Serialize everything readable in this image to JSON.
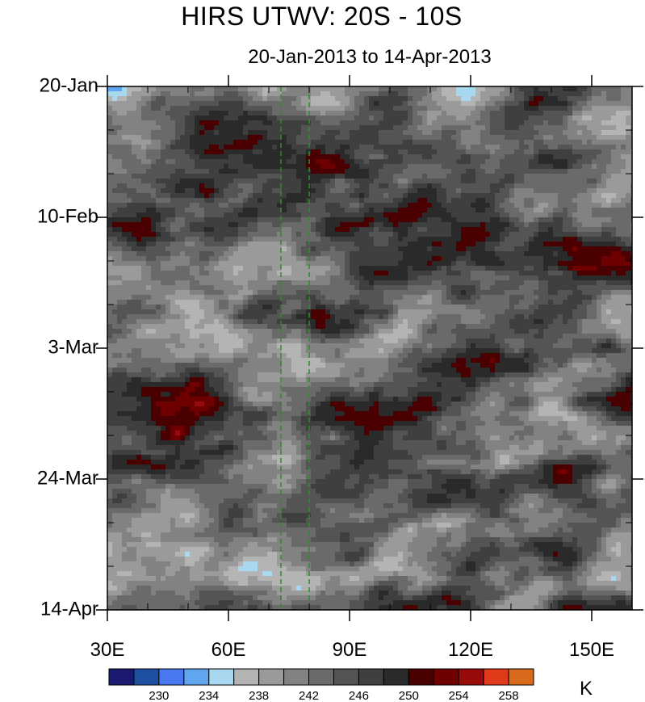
{
  "chart_data": {
    "type": "heatmap",
    "title": "HIRS UTWV: 20S - 10S",
    "subtitle": "20-Jan-2013 to 14-Apr-2013",
    "x_ticks": [
      "30E",
      "60E",
      "90E",
      "120E",
      "150E"
    ],
    "x_tick_values": [
      30,
      60,
      90,
      120,
      150
    ],
    "xlim": [
      30,
      160
    ],
    "y_ticks": [
      "20-Jan",
      "10-Feb",
      "3-Mar",
      "24-Mar",
      "14-Apr"
    ],
    "ylim": [
      "20-Jan-2013",
      "14-Apr-2013"
    ],
    "reference_lines_lon": [
      73,
      80
    ],
    "reference_line_color": "#2e8b2e",
    "colorbar": {
      "unit": "K",
      "labels": [
        "230",
        "234",
        "238",
        "242",
        "246",
        "250",
        "254",
        "258"
      ],
      "colors": [
        "#1a1a70",
        "#1e4fa0",
        "#4a78f0",
        "#5fa6ee",
        "#a8d8f0",
        "#b4b4b4",
        "#9a9a9a",
        "#828282",
        "#6a6a6a",
        "#545454",
        "#3f3f3f",
        "#2a2a2a",
        "#4a0000",
        "#6e0000",
        "#990a0a",
        "#e03a1a",
        "#d96a1c"
      ],
      "level_min": 226,
      "level_step": 2
    }
  }
}
